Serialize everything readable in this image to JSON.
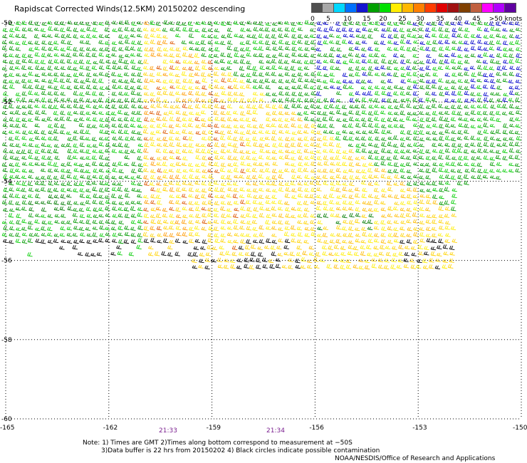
{
  "title": "Rapidscat Corrected Winds(12.5KM) 20150202 descending",
  "colorbar": {
    "colors": [
      "#505050",
      "#a8a8a8",
      "#00d8ff",
      "#0070ff",
      "#1414d0",
      "#00a000",
      "#00e000",
      "#ffee00",
      "#ffb800",
      "#ff8000",
      "#ff3c00",
      "#e00000",
      "#a01010",
      "#804000",
      "#c06040",
      "#ff00ff",
      "#b000ff",
      "#6000a0"
    ],
    "labels": [
      "0",
      "5",
      "10",
      "15",
      "20",
      "25",
      "30",
      "35",
      "40",
      "45",
      ">50 knots"
    ]
  },
  "map": {
    "lat_labels": [
      "-50",
      "-52",
      "-54",
      "-56",
      "-58",
      "-60"
    ],
    "lon_labels": [
      "-165",
      "-162",
      "-159",
      "-156",
      "-153",
      "-150"
    ],
    "lat_range": [
      -60,
      -50
    ],
    "lon_range": [
      -165,
      -150
    ]
  },
  "times": [
    "21:33",
    "21:34"
  ],
  "notes": {
    "line1": "Note: 1) Times are GMT 2)Times along bottom correspond to measurement at −50S",
    "line2": "3)Data buffer is 22 hrs from 20150202 4) Black circles indicate possible contamination",
    "credit": "NOAA/NESDIS/Office of Research and Applications"
  }
}
